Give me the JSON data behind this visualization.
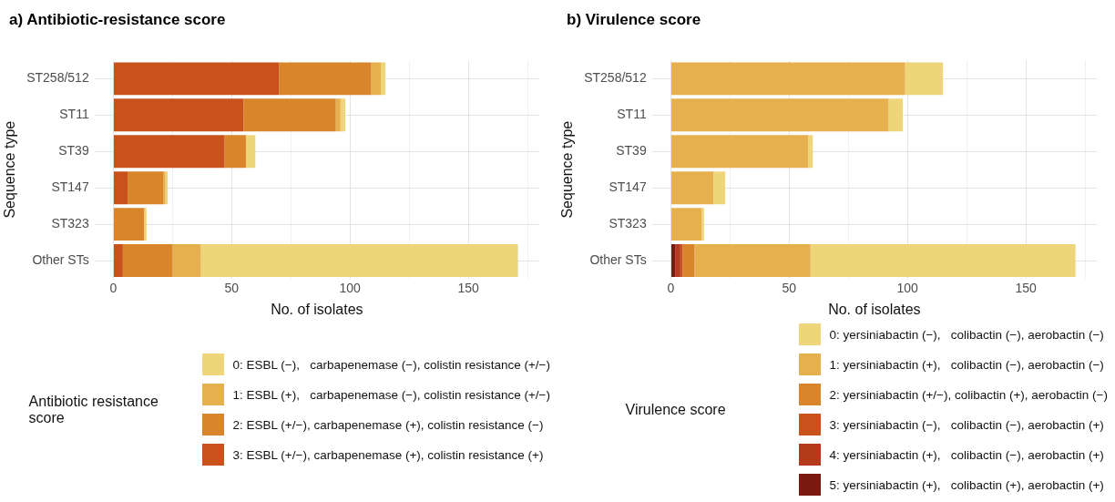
{
  "chart_data": [
    {
      "type": "bar",
      "title": "a) Antibiotic-resistance score",
      "orientation": "horizontal",
      "stacked": true,
      "xlabel": "No. of isolates",
      "ylabel": "Sequence type",
      "legend_title": "Antibiotic resistance score",
      "legend": "bottom",
      "grid": true,
      "categories": [
        "ST258/512",
        "ST11",
        "ST39",
        "ST147",
        "ST323",
        "Other STs"
      ],
      "xlim": [
        -8,
        180
      ],
      "xticks": [
        0,
        {
          "value": 25,
          "label": null
        },
        50,
        {
          "value": 75,
          "label": null
        },
        100,
        {
          "value": 125,
          "label": null
        },
        150,
        {
          "value": 175,
          "label": null
        }
      ],
      "series": [
        {
          "name": "3: ESBL (+/−), carbapenemase (+), colistin resistance (+)",
          "color": "#c9521c",
          "values": [
            70,
            55,
            47,
            6,
            0,
            4
          ]
        },
        {
          "name": "2: ESBL (+/−), carbapenemase (+), colistin resistance (−)",
          "color": "#d8852b",
          "values": [
            39,
            39,
            9,
            15,
            13,
            21
          ]
        },
        {
          "name": "1: ESBL (+),   carbapenemase (−), colistin resistance (+/−)",
          "color": "#e6b04e",
          "values": [
            4,
            2,
            0,
            1,
            0,
            12
          ]
        },
        {
          "name": "0: ESBL (−),   carbapenemase (−), colistin resistance (+/−)",
          "color": "#efd57a",
          "values": [
            2,
            2,
            4,
            1,
            1,
            134
          ]
        }
      ]
    },
    {
      "type": "bar",
      "title": "b) Virulence score",
      "orientation": "horizontal",
      "stacked": true,
      "xlabel": "No. of isolates",
      "ylabel": "Sequence type",
      "legend_title": "Virulence score",
      "legend": "bottom",
      "grid": true,
      "categories": [
        "ST258/512",
        "ST11",
        "ST39",
        "ST147",
        "ST323",
        "Other STs"
      ],
      "xlim": [
        -8,
        180
      ],
      "xticks": [
        0,
        {
          "value": 25,
          "label": null
        },
        50,
        {
          "value": 75,
          "label": null
        },
        100,
        {
          "value": 125,
          "label": null
        },
        150,
        {
          "value": 175,
          "label": null
        }
      ],
      "series": [
        {
          "name": "5: yersiniabactin (+),   colibactin (+), aerobactin (+)",
          "color": "#7a1a10",
          "values": [
            0,
            0,
            0,
            0,
            0,
            2
          ]
        },
        {
          "name": "4: yersiniabactin (+),   colibactin (−), aerobactin (+)",
          "color": "#b33a1a",
          "values": [
            0,
            0,
            0,
            0,
            0,
            2
          ]
        },
        {
          "name": "3: yersiniabactin (−),   colibactin (−), aerobactin (+)",
          "color": "#c9521c",
          "values": [
            0,
            0,
            0,
            0,
            0,
            1
          ]
        },
        {
          "name": "2: yersiniabactin (+/−), colibactin (+), aerobactin (−)",
          "color": "#d8852b",
          "values": [
            0,
            0,
            0,
            0,
            0,
            5
          ]
        },
        {
          "name": "1: yersiniabactin (+),   colibactin (−), aerobactin (−)",
          "color": "#e6b04e",
          "values": [
            99,
            92,
            58,
            18,
            13,
            49
          ]
        },
        {
          "name": "0: yersiniabactin (−),   colibactin (−), aerobactin (−)",
          "color": "#efd57a",
          "values": [
            16,
            6,
            2,
            5,
            1,
            112
          ]
        }
      ]
    }
  ]
}
